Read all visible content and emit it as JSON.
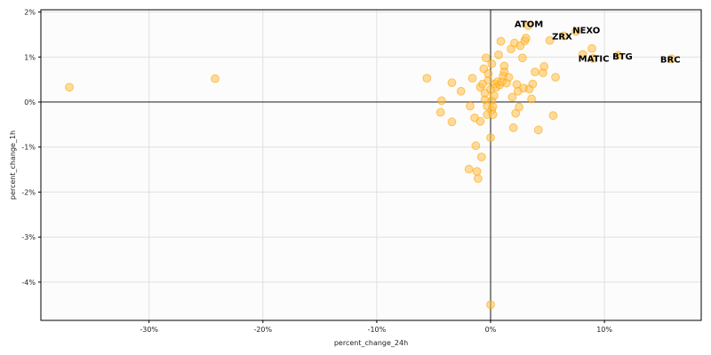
{
  "chart_data": {
    "type": "scatter",
    "title": "",
    "xlabel": "percent_change_24h",
    "ylabel": "percent_change_1h",
    "xlim": [
      -39.5,
      18.5
    ],
    "ylim": [
      -4.85,
      2.05
    ],
    "grid": true,
    "x_ticks": [
      -30,
      -20,
      -10,
      0,
      10
    ],
    "x_tick_labels": [
      "-30%",
      "-20%",
      "-10%",
      "0%",
      "10%"
    ],
    "y_ticks": [
      -4,
      -3,
      -2,
      -1,
      0,
      1,
      2
    ],
    "y_tick_labels": [
      "-4%",
      "-3%",
      "-2%",
      "-1%",
      "0%",
      "1%",
      "2%"
    ],
    "reference_lines": {
      "x": 0,
      "y": 0
    },
    "colors": {
      "point_fill": "#ffc04d",
      "point_stroke": "#ffa500",
      "grid": "#e0e0e0",
      "plot_bg": "#fcfcfc"
    },
    "points": [
      {
        "x": -37.0,
        "y": 0.33
      },
      {
        "x": -24.2,
        "y": 0.52
      },
      {
        "x": -5.6,
        "y": 0.53
      },
      {
        "x": -4.3,
        "y": 0.03
      },
      {
        "x": -4.4,
        "y": -0.23
      },
      {
        "x": -3.4,
        "y": 0.43
      },
      {
        "x": -3.4,
        "y": -0.44
      },
      {
        "x": -2.6,
        "y": 0.24
      },
      {
        "x": -1.8,
        "y": -0.09
      },
      {
        "x": -1.6,
        "y": 0.53
      },
      {
        "x": -1.4,
        "y": -0.35
      },
      {
        "x": -1.3,
        "y": -0.97
      },
      {
        "x": -1.2,
        "y": -1.54
      },
      {
        "x": -1.1,
        "y": -1.7
      },
      {
        "x": -1.9,
        "y": -1.49
      },
      {
        "x": -0.8,
        "y": -1.22
      },
      {
        "x": -0.9,
        "y": -0.43
      },
      {
        "x": -0.6,
        "y": 0.74
      },
      {
        "x": -0.4,
        "y": 0.98
      },
      {
        "x": -0.9,
        "y": 0.33
      },
      {
        "x": -0.7,
        "y": 0.4
      },
      {
        "x": -0.5,
        "y": 0.2
      },
      {
        "x": -0.5,
        "y": 0.05
      },
      {
        "x": -0.3,
        "y": -0.09
      },
      {
        "x": -0.3,
        "y": -0.28
      },
      {
        "x": -0.2,
        "y": 0.48
      },
      {
        "x": -0.2,
        "y": 0.63
      },
      {
        "x": 0.0,
        "y": 0.28
      },
      {
        "x": 0.1,
        "y": 0.85
      },
      {
        "x": 0.1,
        "y": 0.03
      },
      {
        "x": 0.1,
        "y": -0.18
      },
      {
        "x": 0.2,
        "y": -0.28
      },
      {
        "x": 0.2,
        "y": -0.1
      },
      {
        "x": 0.3,
        "y": 0.14
      },
      {
        "x": 0.4,
        "y": 0.4
      },
      {
        "x": 0.5,
        "y": 0.33
      },
      {
        "x": 0.6,
        "y": 0.45
      },
      {
        "x": 0.7,
        "y": 1.05
      },
      {
        "x": 0.8,
        "y": 0.38
      },
      {
        "x": 0.9,
        "y": 1.35
      },
      {
        "x": 1.0,
        "y": 0.45
      },
      {
        "x": 1.1,
        "y": 0.58
      },
      {
        "x": 1.2,
        "y": 0.8
      },
      {
        "x": 1.2,
        "y": 0.67
      },
      {
        "x": 1.4,
        "y": 0.42
      },
      {
        "x": 1.6,
        "y": 0.55
      },
      {
        "x": 1.8,
        "y": 1.18
      },
      {
        "x": 1.9,
        "y": 0.11
      },
      {
        "x": 2.0,
        "y": -0.57
      },
      {
        "x": 2.1,
        "y": 1.31
      },
      {
        "x": 2.2,
        "y": -0.25
      },
      {
        "x": 2.3,
        "y": 0.39
      },
      {
        "x": 2.4,
        "y": 0.24
      },
      {
        "x": 2.5,
        "y": -0.11
      },
      {
        "x": 2.6,
        "y": 1.25
      },
      {
        "x": 2.8,
        "y": 0.98
      },
      {
        "x": 2.9,
        "y": 0.31
      },
      {
        "x": 3.0,
        "y": 1.36
      },
      {
        "x": 3.1,
        "y": 1.42
      },
      {
        "x": 3.4,
        "y": 0.29
      },
      {
        "x": 3.6,
        "y": 0.07
      },
      {
        "x": 3.7,
        "y": 0.4
      },
      {
        "x": 3.9,
        "y": 0.67
      },
      {
        "x": 4.2,
        "y": -0.62
      },
      {
        "x": 4.6,
        "y": 0.65
      },
      {
        "x": 4.7,
        "y": 0.79
      },
      {
        "x": 5.2,
        "y": 1.37
      },
      {
        "x": 5.5,
        "y": -0.3
      },
      {
        "x": 5.7,
        "y": 0.55
      },
      {
        "x": 6.4,
        "y": 1.47
      },
      {
        "x": 8.1,
        "y": 1.06
      },
      {
        "x": 8.9,
        "y": 1.19
      },
      {
        "x": 9.0,
        "y": 0.97
      },
      {
        "x": 11.2,
        "y": 1.04
      },
      {
        "x": 15.9,
        "y": 0.96
      },
      {
        "x": 0.0,
        "y": -0.79
      },
      {
        "x": 0.0,
        "y": -4.5
      },
      {
        "x": 3.3,
        "y": 1.7
      },
      {
        "x": 7.5,
        "y": 1.57
      }
    ],
    "annotations": [
      {
        "text": "ATOM",
        "x": 2.1,
        "y": 1.74
      },
      {
        "text": "ZRX",
        "x": 5.4,
        "y": 1.47
      },
      {
        "text": "NEXO",
        "x": 7.2,
        "y": 1.61
      },
      {
        "text": "MATIC",
        "x": 7.7,
        "y": 0.98
      },
      {
        "text": "BTG",
        "x": 10.7,
        "y": 1.02
      },
      {
        "text": "BRC",
        "x": 14.9,
        "y": 0.96
      }
    ]
  }
}
